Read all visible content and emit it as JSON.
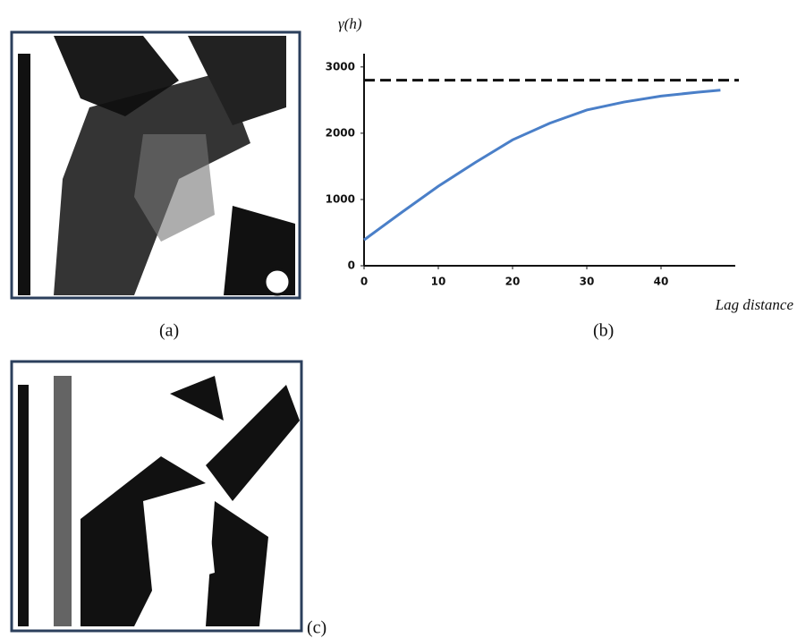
{
  "panel_labels": [
    "(a)",
    "(b)",
    "(c)"
  ],
  "chart_data": {
    "type": "line",
    "y_label": "γ(h)",
    "x_label": "Lag distance",
    "x": [
      0,
      5,
      10,
      15,
      20,
      25,
      30,
      35,
      40,
      45,
      48
    ],
    "series": [
      {
        "color": "#4a7fc8",
        "values": [
          390,
          800,
          1200,
          1560,
          1900,
          2150,
          2350,
          2470,
          2560,
          2620,
          2650
        ]
      }
    ],
    "reference_line": 2800,
    "xlim": [
      0,
      50
    ],
    "ylim": [
      0,
      3200
    ],
    "xticks": [
      0,
      10,
      20,
      30,
      40
    ],
    "yticks": [
      0,
      1000,
      2000,
      3000
    ]
  }
}
